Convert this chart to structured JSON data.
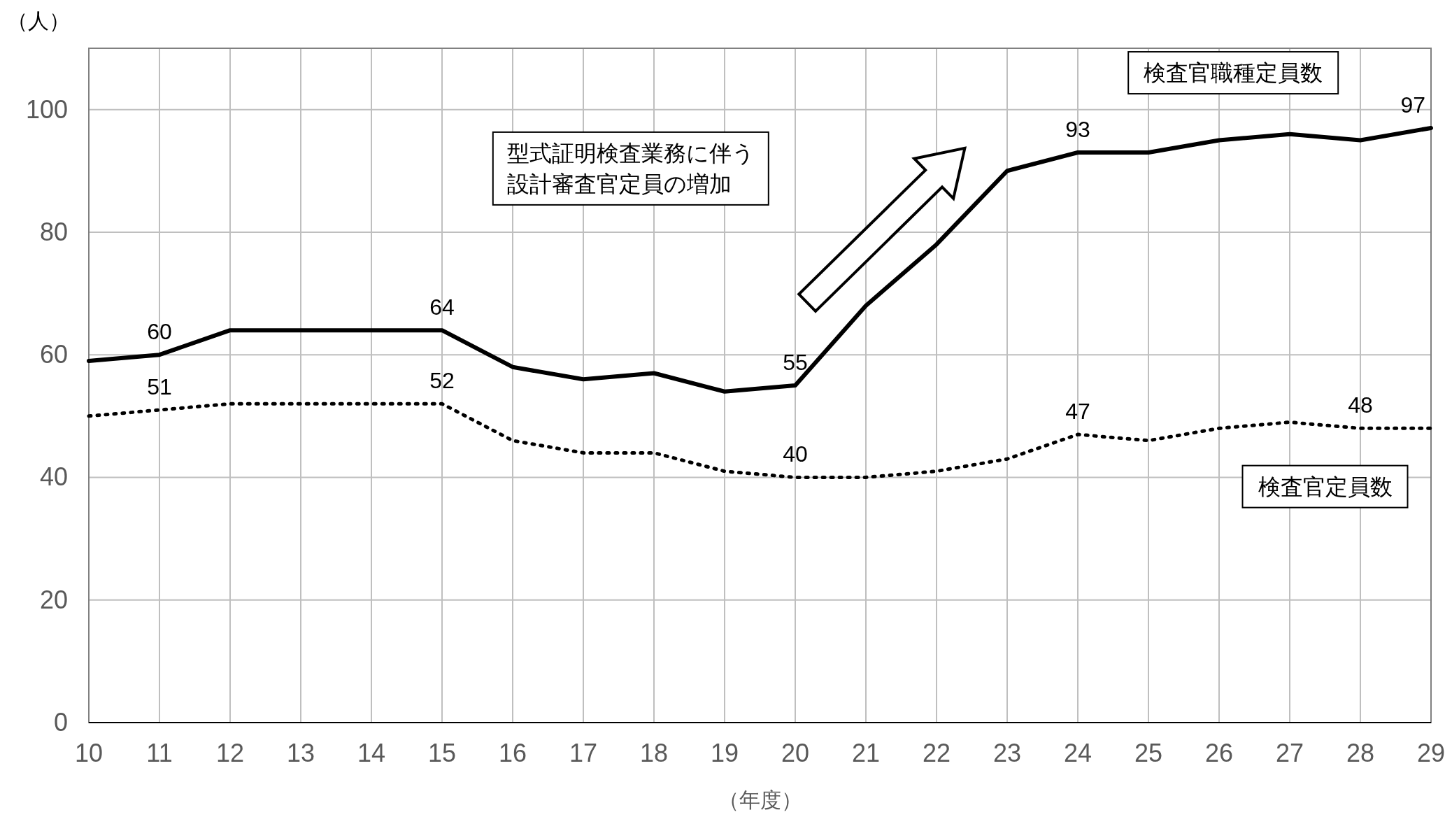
{
  "chart_data": {
    "type": "line",
    "ylabel": "（人）",
    "xlabel": "（年度）",
    "x": [
      10,
      11,
      12,
      13,
      14,
      15,
      16,
      17,
      18,
      19,
      20,
      21,
      22,
      23,
      24,
      25,
      26,
      27,
      28,
      29
    ],
    "series": [
      {
        "name": "検査官職種定員数",
        "color": "#000000",
        "line_style": "solid",
        "values": [
          59,
          60,
          64,
          64,
          64,
          64,
          58,
          56,
          57,
          54,
          55,
          68,
          78,
          90,
          93,
          93,
          95,
          96,
          95,
          97
        ],
        "value_labels": [
          null,
          "60",
          null,
          null,
          null,
          "64",
          null,
          null,
          null,
          null,
          "55",
          null,
          null,
          null,
          "93",
          null,
          null,
          null,
          null,
          "97"
        ]
      },
      {
        "name": "検査官定員数",
        "color": "#000000",
        "line_style": "dotted",
        "values": [
          50,
          51,
          52,
          52,
          52,
          52,
          46,
          44,
          44,
          41,
          40,
          40,
          41,
          43,
          47,
          46,
          48,
          49,
          48,
          48
        ],
        "value_labels": [
          null,
          "51",
          null,
          null,
          null,
          "52",
          null,
          null,
          null,
          null,
          "40",
          null,
          null,
          null,
          "47",
          null,
          null,
          null,
          "48",
          null
        ]
      }
    ],
    "annotations": [
      "型式証明検査業務に伴う設計審査官定員の増加"
    ],
    "xlim": [
      10,
      29
    ],
    "xticks": [
      10,
      11,
      12,
      13,
      14,
      15,
      16,
      17,
      18,
      19,
      20,
      21,
      22,
      23,
      24,
      25,
      26,
      27,
      28,
      29
    ],
    "ylim": [
      0,
      110
    ],
    "yticks": [
      0,
      20,
      40,
      60,
      80,
      100
    ],
    "grid": true,
    "marker": "none"
  }
}
